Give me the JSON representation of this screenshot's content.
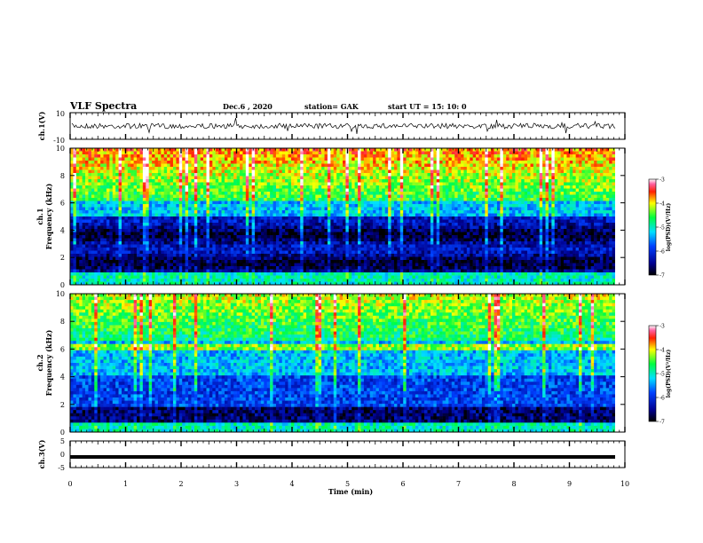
{
  "header": {
    "title": "VLF Spectra",
    "date": "Dec.6 , 2020",
    "station": "station= GAK",
    "start": "start UT = 15: 10: 0"
  },
  "chart_data": [
    {
      "type": "line",
      "name": "ch1-waveform",
      "ylabel": "ch.1(V)",
      "ylim": [
        -10,
        10
      ],
      "ytick_labels": [
        "10",
        "-10"
      ],
      "xlim": [
        0,
        10
      ]
    },
    {
      "type": "heatmap",
      "name": "ch1-spectrogram",
      "ylabel_line1": "ch.1",
      "ylabel_line2": "Frequency (kHz)",
      "ylim": [
        0,
        10
      ],
      "yticks": [
        0,
        2,
        4,
        6,
        8,
        10
      ],
      "xlim": [
        0,
        10
      ],
      "colorbar": {
        "label": "log(PSD)(V²/Hz)",
        "range": [
          -7,
          -3
        ],
        "ticks": [
          "-3",
          "-4",
          "-5",
          "-6",
          "-7"
        ]
      }
    },
    {
      "type": "heatmap",
      "name": "ch2-spectrogram",
      "ylabel_line1": "ch.2",
      "ylabel_line2": "Frequency (kHz)",
      "ylim": [
        0,
        10
      ],
      "yticks": [
        0,
        2,
        4,
        6,
        8,
        10
      ],
      "xlim": [
        0,
        10
      ],
      "colorbar": {
        "label": "log(PSD)(V²/Hz)",
        "range": [
          -7,
          -3
        ],
        "ticks": [
          "-3",
          "-4",
          "-5",
          "-6",
          "-7"
        ]
      }
    },
    {
      "type": "line",
      "name": "ch3-waveform",
      "ylabel": "ch.3(V)",
      "ylim": [
        -5,
        5
      ],
      "ytick_labels": [
        "5",
        "0",
        "-5"
      ],
      "value": -1,
      "xlim": [
        0,
        10
      ],
      "xticks": [
        "0",
        "1",
        "2",
        "3",
        "4",
        "5",
        "6",
        "7",
        "8",
        "9",
        "10"
      ],
      "xlabel": "Time (min)"
    }
  ]
}
